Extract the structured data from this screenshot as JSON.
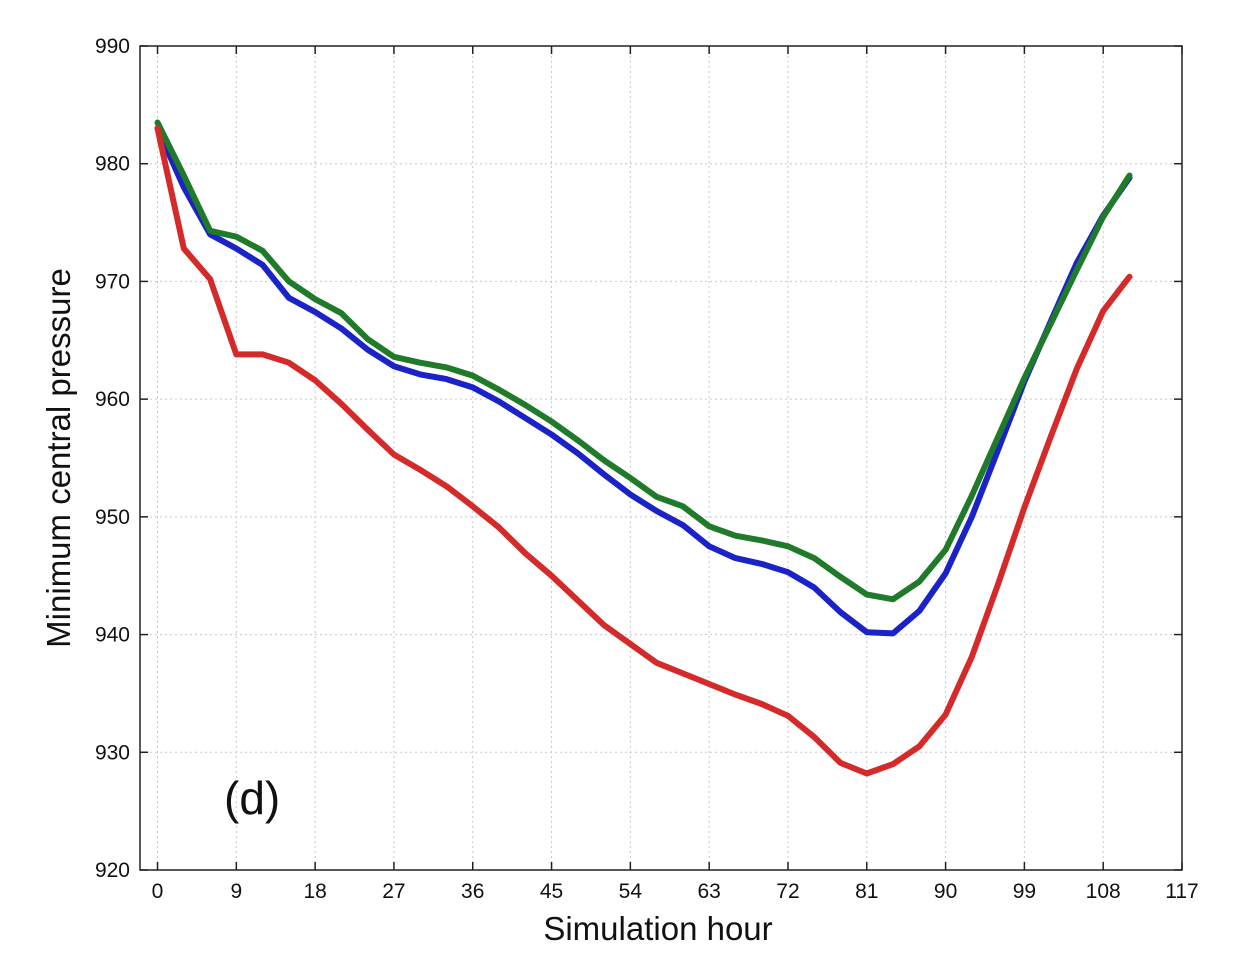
{
  "chart_data": {
    "type": "line",
    "title": "",
    "panel_label": "(d)",
    "xlabel": "Simulation hour",
    "ylabel": "Minimum central pressure",
    "xlim": [
      -2,
      117
    ],
    "ylim": [
      920,
      990
    ],
    "xticks": [
      0,
      9,
      18,
      27,
      36,
      45,
      54,
      63,
      72,
      81,
      90,
      99,
      108,
      117
    ],
    "yticks": [
      920,
      930,
      940,
      950,
      960,
      970,
      980,
      990
    ],
    "grid": true,
    "legend": "none",
    "x": [
      0,
      3,
      6,
      9,
      12,
      15,
      18,
      21,
      24,
      27,
      30,
      33,
      36,
      39,
      42,
      45,
      48,
      51,
      54,
      57,
      60,
      63,
      66,
      69,
      72,
      75,
      78,
      81,
      84,
      87,
      90,
      93,
      96,
      99,
      102,
      105,
      108,
      111
    ],
    "series": [
      {
        "color": "#1a22c8",
        "values": [
          983,
          978,
          974,
          972.8,
          971.4,
          968.6,
          967.4,
          966,
          964.2,
          962.8,
          962.1,
          961.7,
          961,
          959.8,
          958.4,
          957,
          955.4,
          953.6,
          951.9,
          950.5,
          949.3,
          947.5,
          946.5,
          946,
          945.3,
          944,
          941.9,
          940.2,
          940.1,
          942,
          945.2,
          950,
          955.7,
          961.5,
          966.6,
          971.6,
          975.6,
          978.8
        ]
      },
      {
        "color": "#1f7a2a",
        "values": [
          983.5,
          979,
          974.3,
          973.8,
          972.6,
          970,
          968.5,
          967.3,
          965.1,
          963.6,
          963.1,
          962.7,
          962,
          960.8,
          959.5,
          958.1,
          956.5,
          954.8,
          953.3,
          951.7,
          950.9,
          949.2,
          948.4,
          948,
          947.5,
          946.5,
          944.9,
          943.4,
          943,
          944.5,
          947.2,
          951.8,
          956.8,
          961.8,
          966.4,
          971,
          975.5,
          979
        ]
      },
      {
        "color": "#d42a2a",
        "values": [
          983,
          972.8,
          970.2,
          963.8,
          963.8,
          963.1,
          961.6,
          959.6,
          957.4,
          955.3,
          954,
          952.6,
          950.9,
          949.1,
          946.9,
          945,
          942.9,
          940.8,
          939.2,
          937.6,
          936.7,
          935.8,
          934.9,
          934.1,
          933.1,
          931.3,
          929.1,
          928.2,
          929,
          930.5,
          933.2,
          938.1,
          944.3,
          950.8,
          956.8,
          962.6,
          967.5,
          970.4
        ]
      }
    ]
  }
}
